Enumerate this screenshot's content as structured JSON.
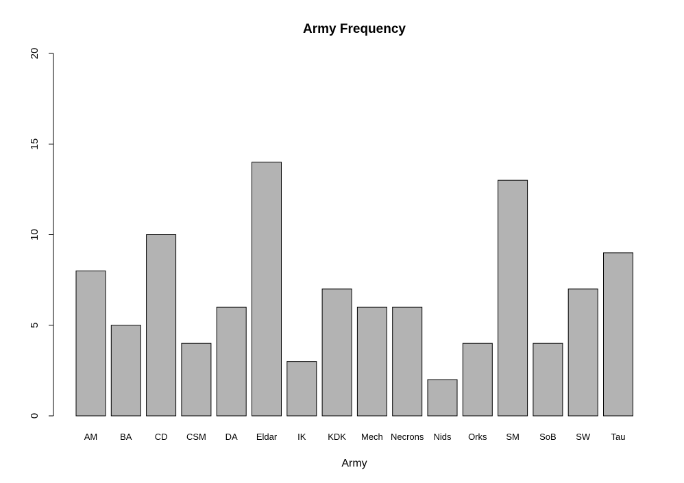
{
  "chart_data": {
    "type": "bar",
    "title": "Army Frequency",
    "xlabel": "Army",
    "ylabel": "",
    "categories": [
      "AM",
      "BA",
      "CD",
      "CSM",
      "DA",
      "Eldar",
      "IK",
      "KDK",
      "Mech",
      "Necrons",
      "Nids",
      "Orks",
      "SM",
      "SoB",
      "SW",
      "Tau"
    ],
    "values": [
      8,
      5,
      10,
      4,
      6,
      14,
      3,
      7,
      6,
      6,
      2,
      4,
      13,
      4,
      7,
      9
    ],
    "ylim": [
      0,
      20
    ],
    "yticks": [
      "0",
      "5",
      "10",
      "15",
      "20"
    ],
    "bar_color": "#b3b3b3",
    "grid": false,
    "legend": "none"
  }
}
